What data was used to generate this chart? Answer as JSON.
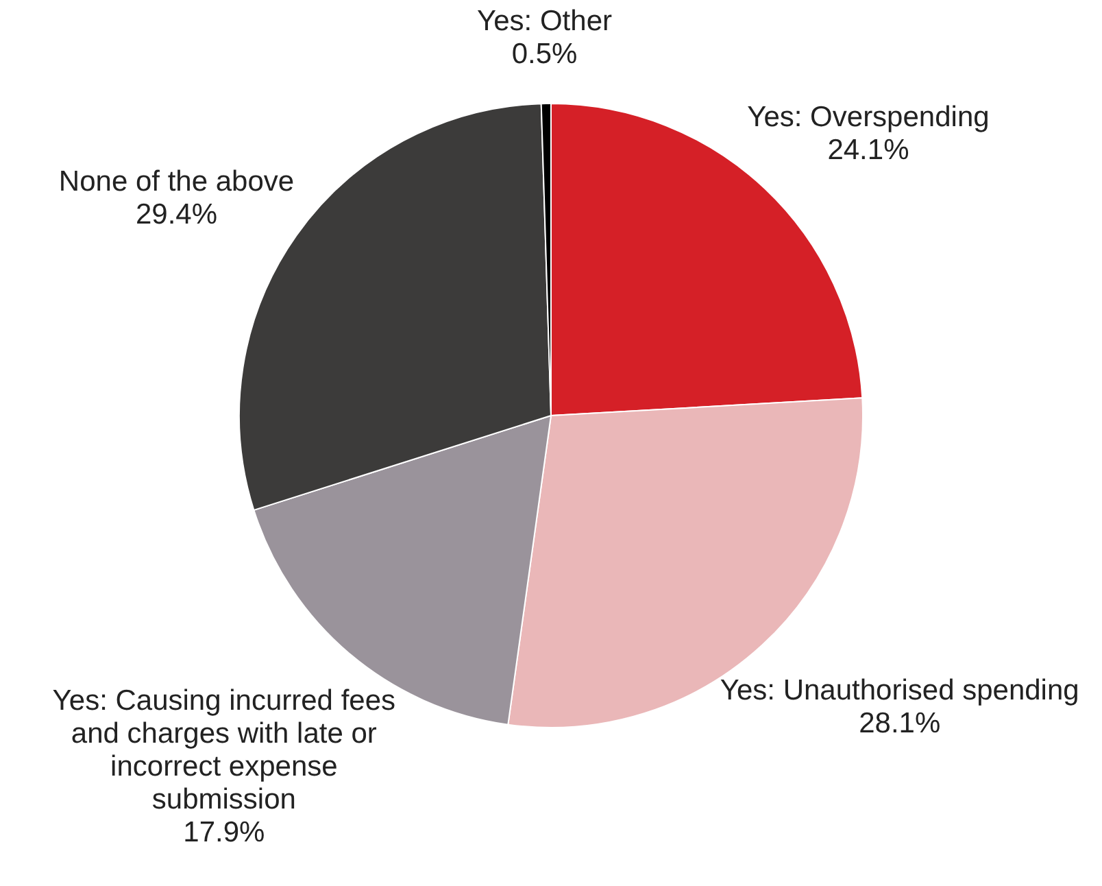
{
  "chart_data": {
    "type": "pie",
    "categories": [
      "Yes: Overspending",
      "Yes: Unauthorised spending",
      "Yes: Causing incurred fees and charges with late or incorrect expense submission",
      "None of the above",
      "Yes: Other"
    ],
    "values": [
      24.1,
      28.1,
      17.9,
      29.4,
      0.5
    ],
    "colors": [
      "#d52027",
      "#eab7b8",
      "#9a939b",
      "#3c3b3a",
      "#000000"
    ],
    "value_labels": [
      "24.1%",
      "28.1%",
      "17.9%",
      "29.4%",
      "0.5%"
    ],
    "legend": false
  }
}
